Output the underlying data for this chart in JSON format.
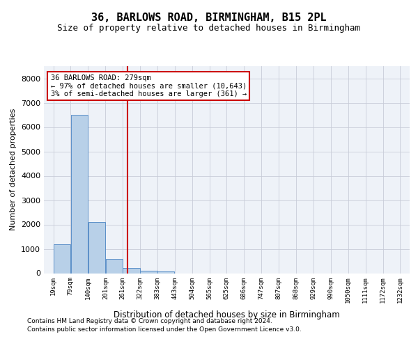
{
  "title": "36, BARLOWS ROAD, BIRMINGHAM, B15 2PL",
  "subtitle": "Size of property relative to detached houses in Birmingham",
  "xlabel": "Distribution of detached houses by size in Birmingham",
  "ylabel": "Number of detached properties",
  "footer_line1": "Contains HM Land Registry data © Crown copyright and database right 2024.",
  "footer_line2": "Contains public sector information licensed under the Open Government Licence v3.0.",
  "annotation_line1": "36 BARLOWS ROAD: 279sqm",
  "annotation_line2": "← 97% of detached houses are smaller (10,643)",
  "annotation_line3": "3% of semi-detached houses are larger (361) →",
  "property_size_sqm": 279,
  "bin_edges": [
    19,
    79,
    140,
    201,
    261,
    322,
    383,
    443,
    504,
    565,
    625,
    686,
    747,
    807,
    868,
    929,
    990,
    1050,
    1111,
    1172,
    1232
  ],
  "bar_values": [
    1200,
    6500,
    2100,
    600,
    220,
    100,
    60,
    0,
    0,
    0,
    0,
    0,
    0,
    0,
    0,
    0,
    0,
    0,
    0,
    0
  ],
  "bar_facecolor": "#b8d0e8",
  "bar_edgecolor": "#5b8fc8",
  "vline_color": "#cc0000",
  "ylim_max": 8500,
  "ytick_vals": [
    0,
    1000,
    2000,
    3000,
    4000,
    5000,
    6000,
    7000,
    8000
  ],
  "grid_color": "#c8ccd8",
  "axes_bg": "#eef2f8",
  "figure_bg": "#ffffff",
  "title_fontsize": 11,
  "subtitle_fontsize": 9,
  "ylabel_fontsize": 8,
  "xlabel_fontsize": 8.5,
  "ytick_fontsize": 8,
  "xtick_fontsize": 6.5,
  "footer_fontsize": 6.5,
  "ann_fontsize": 7.5
}
